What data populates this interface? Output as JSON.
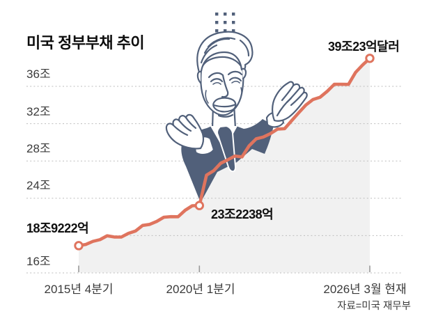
{
  "title": "미국 정부부채 추이",
  "source": "자료=미국 재무부",
  "chart_data": {
    "type": "area",
    "title": "미국 정부부채 추이",
    "grid": "dotted horizontal lines",
    "legend": "none",
    "ylim": [
      16,
      40
    ],
    "y_unit_suffix": "조",
    "x_start_quarter": "2015 Q4",
    "x_end_quarter": "2026 Q1",
    "values": [
      18.9222,
      19.05,
      19.38,
      19.57,
      19.98,
      19.85,
      19.84,
      20.24,
      20.49,
      21.09,
      21.2,
      21.52,
      21.97,
      22.03,
      22.02,
      22.72,
      23.2,
      23.2238,
      26.48,
      26.95,
      27.75,
      28.13,
      28.53,
      28.43,
      29.62,
      30.37,
      30.57,
      30.93,
      31.42,
      31.46,
      32.33,
      33.17,
      34.0,
      34.59,
      34.83,
      35.46,
      36.22,
      36.22,
      36.21,
      37.5,
      38.3,
      39.0023
    ],
    "y_ticks": [
      {
        "v": 36,
        "label": "36조"
      },
      {
        "v": 32,
        "label": "32조"
      },
      {
        "v": 28,
        "label": "28조"
      },
      {
        "v": 24,
        "label": "24조"
      },
      {
        "v": 20,
        "label": ""
      },
      {
        "v": 16,
        "label": "16조"
      }
    ],
    "x_tick_labels": [
      {
        "index": 0,
        "label": "2015년 4분기"
      },
      {
        "index": 17,
        "label": "2020년 1분기"
      },
      {
        "index": 41,
        "label": "2026년 3월 현재"
      }
    ],
    "annotations": [
      {
        "index": 0,
        "label": "18조9222억",
        "value": 18.9222
      },
      {
        "index": 17,
        "label": "23조2238억",
        "value": 23.2238
      },
      {
        "index": 41,
        "label": "39조23억달러",
        "value": 39.0023
      }
    ],
    "colors": {
      "line": "#DF745E",
      "marker_fill": "#FFFFFF",
      "area": "#F1F1F1",
      "grid": "#BDBDBD",
      "tick": "#9A9A9A",
      "figure": "#51607A"
    }
  }
}
